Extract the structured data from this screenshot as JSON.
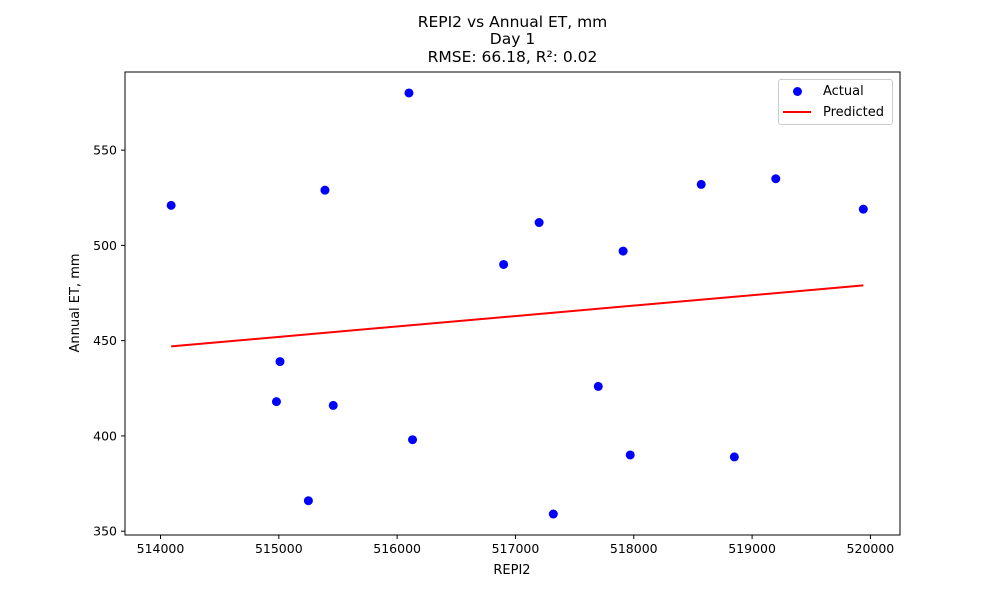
{
  "chart_data": {
    "type": "scatter",
    "title": "REPI2 vs Annual ET, mm",
    "subtitle": "Day 1",
    "metrics": "RMSE: 66.18, R²: 0.02",
    "xlabel": "REPI2",
    "ylabel": "Annual ET, mm",
    "xlim": [
      513700,
      520250
    ],
    "ylim": [
      348,
      591
    ],
    "xticks": [
      514000,
      515000,
      516000,
      517000,
      518000,
      519000,
      520000
    ],
    "yticks": [
      350,
      400,
      450,
      500,
      550
    ],
    "grid": false,
    "legend_position": "top-right",
    "series": [
      {
        "name": "Actual",
        "kind": "scatter",
        "color": "#0000ff",
        "points": [
          {
            "x": 514090,
            "y": 521
          },
          {
            "x": 514980,
            "y": 418
          },
          {
            "x": 515010,
            "y": 439
          },
          {
            "x": 515250,
            "y": 366
          },
          {
            "x": 515390,
            "y": 529
          },
          {
            "x": 515460,
            "y": 416
          },
          {
            "x": 516100,
            "y": 580
          },
          {
            "x": 516130,
            "y": 398
          },
          {
            "x": 516900,
            "y": 490
          },
          {
            "x": 517200,
            "y": 512
          },
          {
            "x": 517320,
            "y": 359
          },
          {
            "x": 517700,
            "y": 426
          },
          {
            "x": 517910,
            "y": 497
          },
          {
            "x": 517970,
            "y": 390
          },
          {
            "x": 518570,
            "y": 532
          },
          {
            "x": 518850,
            "y": 389
          },
          {
            "x": 519200,
            "y": 535
          },
          {
            "x": 519940,
            "y": 519
          }
        ]
      },
      {
        "name": "Predicted",
        "kind": "line",
        "color": "#ff0000",
        "points": [
          {
            "x": 514090,
            "y": 447
          },
          {
            "x": 519940,
            "y": 479
          }
        ]
      }
    ]
  }
}
